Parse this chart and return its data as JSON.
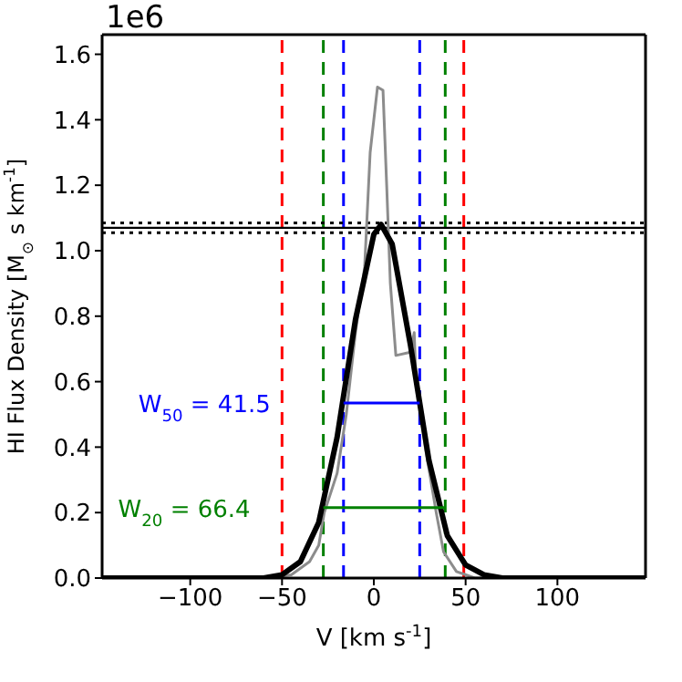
{
  "chart_data": {
    "type": "line",
    "xlabel": "V [km s$^{-1}$]",
    "ylabel": "HI Flux Density [M$_{⊙}$ s km$^{-1}$]",
    "xlim": [
      -148,
      148
    ],
    "xticks": [
      {
        "value": -100,
        "label": "−100"
      },
      {
        "value": -50,
        "label": "−50"
      },
      0,
      50,
      100
    ],
    "ylim": [
      0,
      1.66
    ],
    "yticks": [
      {
        "value": 0,
        "label": "0.0"
      },
      0.2,
      0.4,
      0.6,
      0.8,
      {
        "value": 1,
        "label": "1.0"
      },
      1.2,
      1.4,
      1.6
    ],
    "annotations": [
      "1e6"
    ],
    "marker": "none",
    "line_style": "solid",
    "ref_lines": [
      {
        "axis": "x",
        "value": -50,
        "color": "#ff0000",
        "line_style": "dashed"
      },
      {
        "axis": "x",
        "value": 49,
        "color": "#ff0000",
        "line_style": "dashed"
      },
      {
        "axis": "x",
        "value": -27.5,
        "color": "#008000",
        "line_style": "dashed"
      },
      {
        "axis": "x",
        "value": 38.9,
        "color": "#008000",
        "line_style": "dashed"
      },
      {
        "axis": "x",
        "value": -16.5,
        "color": "#0000ff",
        "line_style": "dashed"
      },
      {
        "axis": "x",
        "value": 25,
        "color": "#0000ff",
        "line_style": "dashed"
      },
      {
        "axis": "y",
        "value": 1.07,
        "color": "#000000",
        "line_style": "solid"
      },
      {
        "axis": "y",
        "value": 1.085,
        "color": "#000000",
        "line_style": "dotted"
      },
      {
        "axis": "y",
        "value": 1.055,
        "color": "#000000",
        "line_style": "dotted"
      }
    ],
    "series": [
      {
        "color": "#8c8c8c",
        "x": [
          -148,
          -60,
          -45,
          -35,
          -30,
          -27,
          -20,
          -15,
          -10,
          -5,
          -2,
          0,
          2,
          5,
          7,
          9,
          12,
          20,
          22,
          23,
          28,
          34,
          38,
          45,
          55,
          148
        ],
        "values": [
          0,
          0,
          0.01,
          0.05,
          0.1,
          0.2,
          0.32,
          0.5,
          0.75,
          0.95,
          1.3,
          1.4,
          1.5,
          1.49,
          1.2,
          0.9,
          0.68,
          0.69,
          0.75,
          0.6,
          0.4,
          0.2,
          0.08,
          0.02,
          0,
          0
        ]
      },
      {
        "color": "#000000",
        "x": [
          -148,
          -80,
          -70,
          -60,
          -50,
          -40,
          -30,
          -20,
          -10,
          0,
          4,
          10,
          20,
          30,
          40,
          50,
          60,
          70,
          80,
          148
        ],
        "values": [
          0,
          0,
          0,
          0,
          0.01,
          0.05,
          0.17,
          0.43,
          0.79,
          1.05,
          1.08,
          1.02,
          0.71,
          0.36,
          0.13,
          0.04,
          0.01,
          0,
          0,
          0
        ]
      },
      {
        "name": "W$_{50}$ =  41.5",
        "color": "#0000ff",
        "x": [
          -16.5,
          25
        ],
        "values": [
          0.535,
          0.535
        ]
      },
      {
        "name": "W$_{20}$ =  66.4",
        "color": "#008000",
        "x": [
          -27.5,
          38.9
        ],
        "values": [
          0.215,
          0.215
        ]
      }
    ]
  }
}
